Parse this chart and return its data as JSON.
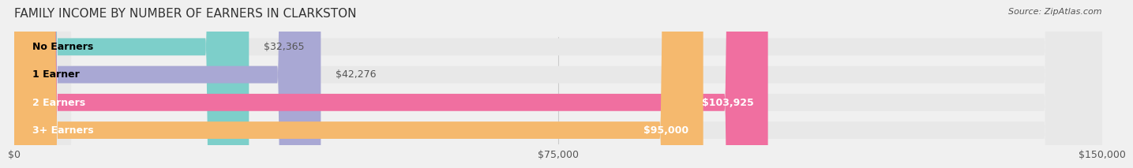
{
  "title": "FAMILY INCOME BY NUMBER OF EARNERS IN CLARKSTON",
  "source": "Source: ZipAtlas.com",
  "categories": [
    "No Earners",
    "1 Earner",
    "2 Earners",
    "3+ Earners"
  ],
  "values": [
    32365,
    42276,
    103925,
    95000
  ],
  "bar_colors": [
    "#7DCFCA",
    "#A9A8D4",
    "#F06FA0",
    "#F5B96E"
  ],
  "value_labels": [
    "$32,365",
    "$42,276",
    "$103,925",
    "$95,000"
  ],
  "xlim": [
    0,
    150000
  ],
  "xticks": [
    0,
    75000,
    150000
  ],
  "xtick_labels": [
    "$0",
    "$75,000",
    "$150,000"
  ],
  "bg_color": "#f0f0f0",
  "bar_bg_color": "#e8e8e8",
  "title_fontsize": 11,
  "label_fontsize": 9,
  "value_fontsize": 9,
  "source_fontsize": 8
}
